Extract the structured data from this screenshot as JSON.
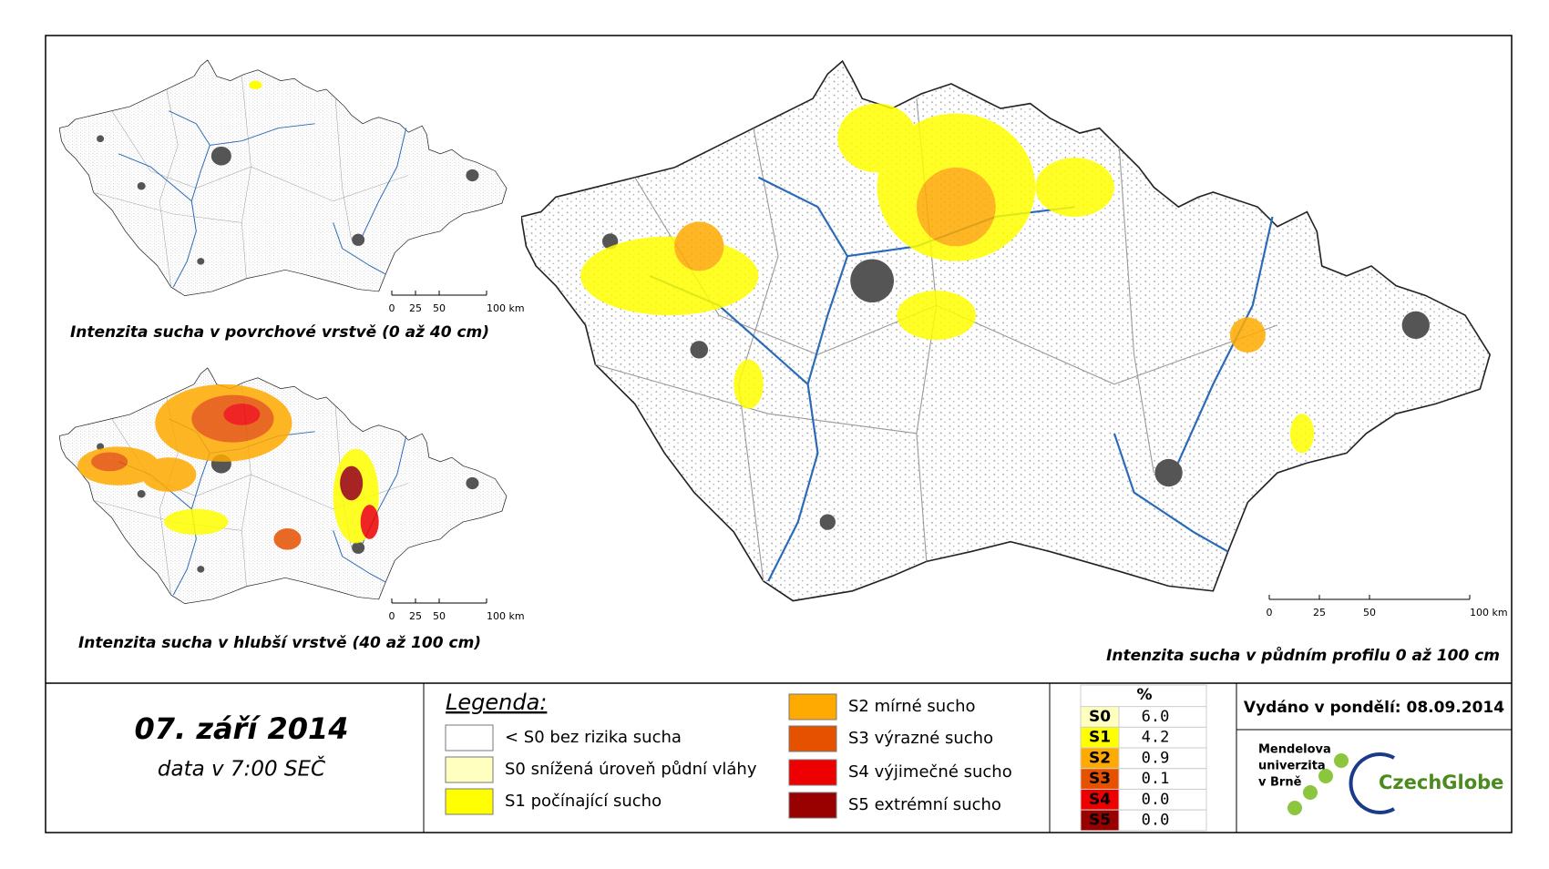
{
  "maps": [
    {
      "caption": "Intenzita sucha v povrchové vrstvě (0 až 40 cm)",
      "scale": [
        "0",
        "25",
        "50",
        "100 km"
      ]
    },
    {
      "caption": "Intenzita sucha v hlubší vrstvě (40 až 100 cm)",
      "scale": [
        "0",
        "25",
        "50",
        "100 km"
      ]
    },
    {
      "caption": "Intenzita sucha v půdním profilu 0 až 100 cm",
      "scale": [
        "0",
        "25",
        "50",
        "100 km"
      ]
    }
  ],
  "date": "07. září 2014",
  "data_time": "data v 7:00 SEČ",
  "legend": {
    "title": "Legenda:",
    "items": [
      {
        "label": "< S0 bez rizika sucha",
        "color": "#ffffff"
      },
      {
        "label": "S0 snížená úroveň půdní vláhy",
        "color": "#ffffc0"
      },
      {
        "label": "S1 počínající sucho",
        "color": "#ffff00"
      },
      {
        "label": "S2 mírné sucho",
        "color": "#ffaa00"
      },
      {
        "label": "S3 výrazné sucho",
        "color": "#e65100"
      },
      {
        "label": "S4 výjimečné sucho",
        "color": "#ee0000"
      },
      {
        "label": "S5 extrémní sucho",
        "color": "#990000"
      }
    ]
  },
  "table": {
    "header": "%",
    "rows": [
      {
        "code": "S0",
        "value": "6.0"
      },
      {
        "code": "S1",
        "value": "4.2"
      },
      {
        "code": "S2",
        "value": "0.9"
      },
      {
        "code": "S3",
        "value": "0.1"
      },
      {
        "code": "S4",
        "value": "0.0"
      },
      {
        "code": "S5",
        "value": "0.0"
      }
    ]
  },
  "issued": "Vydáno v pondělí: 08.09.2014",
  "logos": {
    "mendel": [
      "Mendelova",
      "univerzita",
      "v Brně"
    ],
    "czechglobe": "CzechGlobe"
  }
}
